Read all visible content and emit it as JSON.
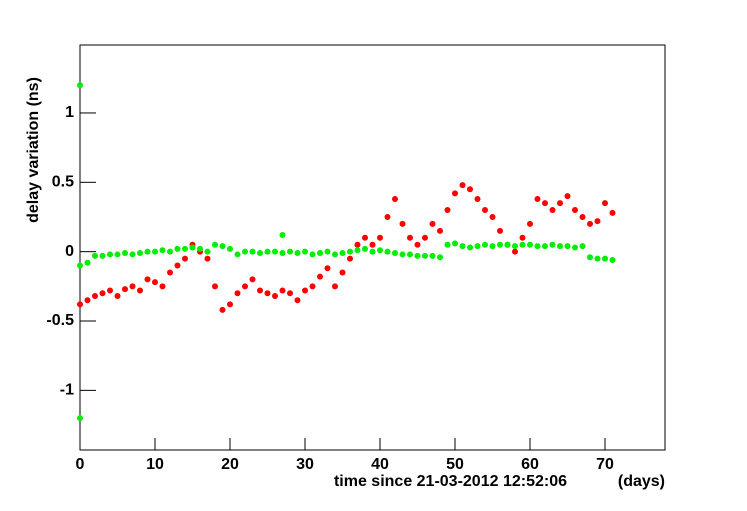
{
  "chart_data": {
    "type": "scatter",
    "ylabel": "delay variation (ns)",
    "xlabel": "time since 21-03-2012 12:52:06",
    "xunit": "(days)",
    "xlim": [
      0,
      78
    ],
    "xticks": [
      0,
      10,
      20,
      30,
      40,
      50,
      60,
      70
    ],
    "ylim": [
      -1.43,
      1.49
    ],
    "yticks": [
      -1,
      -0.5,
      0,
      0.5,
      1
    ],
    "series": [
      {
        "name": null,
        "color": "#ff0000",
        "x": [
          0,
          1,
          2,
          3,
          4,
          5,
          6,
          7,
          8,
          9,
          10,
          11,
          12,
          13,
          14,
          15,
          16,
          17,
          18,
          19,
          20,
          21,
          22,
          23,
          24,
          25,
          26,
          27,
          28,
          29,
          30,
          31,
          32,
          33,
          34,
          35,
          36,
          37,
          38,
          39,
          40,
          41,
          42,
          43,
          44,
          45,
          46,
          47,
          48,
          49,
          50,
          51,
          52,
          53,
          54,
          55,
          56,
          57,
          58,
          59,
          60,
          61,
          62,
          63,
          64,
          65,
          66,
          67,
          68,
          69,
          70,
          71
        ],
        "values": [
          -0.38,
          -0.35,
          -0.32,
          -0.3,
          -0.28,
          -0.32,
          -0.27,
          -0.25,
          -0.28,
          -0.2,
          -0.22,
          -0.25,
          -0.15,
          -0.1,
          -0.05,
          0.05,
          0.0,
          -0.05,
          -0.25,
          -0.42,
          -0.38,
          -0.3,
          -0.25,
          -0.2,
          -0.28,
          -0.3,
          -0.32,
          -0.28,
          -0.3,
          -0.35,
          -0.28,
          -0.25,
          -0.18,
          -0.12,
          -0.25,
          -0.15,
          -0.05,
          0.05,
          0.1,
          0.05,
          0.1,
          0.25,
          0.38,
          0.2,
          0.1,
          0.05,
          0.1,
          0.2,
          0.15,
          0.3,
          0.42,
          0.48,
          0.45,
          0.38,
          0.3,
          0.25,
          0.15,
          0.05,
          0.0,
          0.1,
          0.2,
          0.38,
          0.35,
          0.3,
          0.35,
          0.4,
          0.3,
          0.25,
          0.2,
          0.22,
          0.35,
          0.28
        ]
      },
      {
        "name": null,
        "color": "#00ee00",
        "x": [
          0,
          0,
          0,
          1,
          2,
          3,
          4,
          5,
          6,
          7,
          8,
          9,
          10,
          11,
          12,
          13,
          14,
          15,
          16,
          17,
          18,
          19,
          20,
          21,
          22,
          23,
          24,
          25,
          26,
          27,
          27,
          28,
          29,
          30,
          31,
          32,
          33,
          34,
          35,
          36,
          37,
          38,
          39,
          40,
          41,
          42,
          43,
          44,
          45,
          46,
          47,
          48,
          49,
          50,
          51,
          52,
          53,
          54,
          55,
          56,
          57,
          58,
          59,
          60,
          61,
          62,
          63,
          64,
          65,
          66,
          67,
          68,
          69,
          70,
          71
        ],
        "values": [
          1.2,
          -1.2,
          -0.1,
          -0.08,
          -0.03,
          -0.03,
          -0.02,
          -0.02,
          -0.01,
          -0.02,
          -0.01,
          0.0,
          0.0,
          0.01,
          0.0,
          0.02,
          0.02,
          0.03,
          0.02,
          0.0,
          0.05,
          0.04,
          0.02,
          -0.02,
          0.0,
          0.0,
          -0.01,
          0.0,
          0.0,
          0.12,
          -0.01,
          0.0,
          -0.01,
          0.0,
          -0.02,
          -0.01,
          0.0,
          -0.02,
          -0.01,
          0.0,
          0.01,
          0.02,
          0.0,
          0.01,
          0.0,
          -0.01,
          -0.02,
          -0.02,
          -0.03,
          -0.03,
          -0.03,
          -0.04,
          0.05,
          0.06,
          0.04,
          0.03,
          0.04,
          0.05,
          0.04,
          0.05,
          0.05,
          0.04,
          0.05,
          0.05,
          0.04,
          0.04,
          0.05,
          0.04,
          0.04,
          0.03,
          0.04,
          -0.04,
          -0.05,
          -0.05,
          -0.06
        ]
      }
    ]
  }
}
